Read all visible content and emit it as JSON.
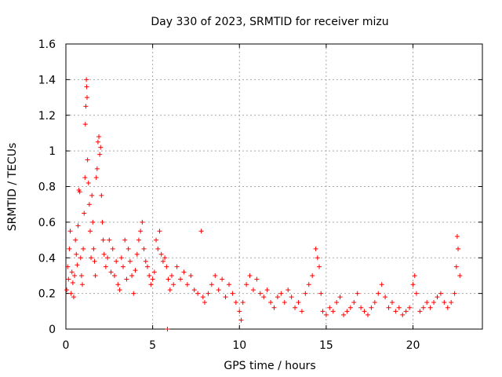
{
  "chart_data": {
    "type": "scatter",
    "title": "Day 330 of 2023, SRMTID for receiver mizu",
    "xlabel": "GPS time / hours",
    "ylabel": "SRMTID / TECUs",
    "xlim": [
      0,
      24
    ],
    "ylim": [
      0,
      1.6
    ],
    "x_ticks": [
      0,
      5,
      10,
      15,
      20
    ],
    "x_tick_labels": [
      "0",
      "5",
      "10",
      "15",
      "20"
    ],
    "y_ticks": [
      0,
      0.2,
      0.4,
      0.6,
      0.8,
      1,
      1.2,
      1.4,
      1.6
    ],
    "y_tick_labels": [
      "0",
      "0.2",
      "0.4",
      "0.6",
      "0.8",
      "1",
      "1.2",
      "1.4",
      "1.6"
    ],
    "grid": true,
    "marker": "+",
    "series": [
      {
        "name": "SRMTID",
        "color": "#ff0000",
        "points": [
          [
            0.05,
            0.22
          ],
          [
            0.1,
            0.35
          ],
          [
            0.15,
            0.28
          ],
          [
            0.2,
            0.45
          ],
          [
            0.25,
            0.55
          ],
          [
            0.3,
            0.2
          ],
          [
            0.35,
            0.32
          ],
          [
            0.4,
            0.26
          ],
          [
            0.45,
            0.18
          ],
          [
            0.5,
            0.3
          ],
          [
            0.55,
            0.5
          ],
          [
            0.6,
            0.42
          ],
          [
            0.65,
            0.36
          ],
          [
            0.7,
            0.58
          ],
          [
            0.75,
            0.78
          ],
          [
            0.8,
            0.77
          ],
          [
            0.85,
            0.4
          ],
          [
            0.9,
            0.3
          ],
          [
            0.95,
            0.25
          ],
          [
            1.0,
            0.45
          ],
          [
            1.05,
            0.65
          ],
          [
            1.1,
            0.85
          ],
          [
            1.12,
            1.15
          ],
          [
            1.15,
            1.25
          ],
          [
            1.18,
            1.4
          ],
          [
            1.2,
            1.36
          ],
          [
            1.22,
            1.3
          ],
          [
            1.25,
            0.95
          ],
          [
            1.3,
            0.82
          ],
          [
            1.35,
            0.7
          ],
          [
            1.4,
            0.55
          ],
          [
            1.45,
            0.4
          ],
          [
            1.5,
            0.75
          ],
          [
            1.55,
            0.6
          ],
          [
            1.6,
            0.45
          ],
          [
            1.65,
            0.38
          ],
          [
            1.7,
            0.3
          ],
          [
            1.75,
            0.85
          ],
          [
            1.8,
            0.9
          ],
          [
            1.85,
            1.05
          ],
          [
            1.9,
            1.08
          ],
          [
            1.95,
            0.98
          ],
          [
            2.0,
            1.02
          ],
          [
            2.05,
            0.75
          ],
          [
            2.1,
            0.6
          ],
          [
            2.15,
            0.5
          ],
          [
            2.2,
            0.42
          ],
          [
            2.3,
            0.35
          ],
          [
            2.4,
            0.4
          ],
          [
            2.5,
            0.5
          ],
          [
            2.6,
            0.32
          ],
          [
            2.7,
            0.45
          ],
          [
            2.8,
            0.3
          ],
          [
            2.9,
            0.38
          ],
          [
            3.0,
            0.25
          ],
          [
            3.1,
            0.22
          ],
          [
            3.2,
            0.4
          ],
          [
            3.3,
            0.35
          ],
          [
            3.4,
            0.5
          ],
          [
            3.5,
            0.28
          ],
          [
            3.6,
            0.45
          ],
          [
            3.7,
            0.38
          ],
          [
            3.8,
            0.3
          ],
          [
            3.9,
            0.2
          ],
          [
            4.0,
            0.33
          ],
          [
            4.1,
            0.42
          ],
          [
            4.2,
            0.5
          ],
          [
            4.3,
            0.55
          ],
          [
            4.4,
            0.6
          ],
          [
            4.5,
            0.45
          ],
          [
            4.6,
            0.38
          ],
          [
            4.7,
            0.35
          ],
          [
            4.8,
            0.3
          ],
          [
            4.9,
            0.25
          ],
          [
            5.0,
            0.28
          ],
          [
            5.1,
            0.32
          ],
          [
            5.2,
            0.5
          ],
          [
            5.3,
            0.45
          ],
          [
            5.4,
            0.55
          ],
          [
            5.5,
            0.42
          ],
          [
            5.6,
            0.38
          ],
          [
            5.7,
            0.4
          ],
          [
            5.8,
            0.35
          ],
          [
            5.85,
            0.0
          ],
          [
            5.9,
            0.28
          ],
          [
            6.0,
            0.22
          ],
          [
            6.1,
            0.3
          ],
          [
            6.2,
            0.25
          ],
          [
            6.4,
            0.35
          ],
          [
            6.6,
            0.28
          ],
          [
            6.8,
            0.32
          ],
          [
            7.0,
            0.25
          ],
          [
            7.2,
            0.3
          ],
          [
            7.4,
            0.22
          ],
          [
            7.6,
            0.2
          ],
          [
            7.8,
            0.55
          ],
          [
            7.9,
            0.18
          ],
          [
            8.0,
            0.15
          ],
          [
            8.2,
            0.2
          ],
          [
            8.4,
            0.25
          ],
          [
            8.6,
            0.3
          ],
          [
            8.8,
            0.22
          ],
          [
            9.0,
            0.28
          ],
          [
            9.2,
            0.18
          ],
          [
            9.4,
            0.25
          ],
          [
            9.6,
            0.2
          ],
          [
            9.8,
            0.15
          ],
          [
            10.0,
            0.1
          ],
          [
            10.1,
            0.05
          ],
          [
            10.2,
            0.15
          ],
          [
            10.4,
            0.25
          ],
          [
            10.6,
            0.3
          ],
          [
            10.8,
            0.22
          ],
          [
            11.0,
            0.28
          ],
          [
            11.2,
            0.2
          ],
          [
            11.4,
            0.18
          ],
          [
            11.6,
            0.22
          ],
          [
            11.8,
            0.15
          ],
          [
            12.0,
            0.12
          ],
          [
            12.2,
            0.18
          ],
          [
            12.4,
            0.2
          ],
          [
            12.6,
            0.15
          ],
          [
            12.8,
            0.22
          ],
          [
            13.0,
            0.18
          ],
          [
            13.2,
            0.12
          ],
          [
            13.4,
            0.15
          ],
          [
            13.6,
            0.1
          ],
          [
            13.8,
            0.2
          ],
          [
            14.0,
            0.25
          ],
          [
            14.2,
            0.3
          ],
          [
            14.4,
            0.45
          ],
          [
            14.5,
            0.4
          ],
          [
            14.6,
            0.35
          ],
          [
            14.7,
            0.2
          ],
          [
            14.8,
            0.1
          ],
          [
            15.0,
            0.08
          ],
          [
            15.2,
            0.12
          ],
          [
            15.4,
            0.1
          ],
          [
            15.6,
            0.15
          ],
          [
            15.8,
            0.18
          ],
          [
            16.0,
            0.08
          ],
          [
            16.2,
            0.1
          ],
          [
            16.4,
            0.12
          ],
          [
            16.6,
            0.15
          ],
          [
            16.8,
            0.2
          ],
          [
            17.0,
            0.12
          ],
          [
            17.2,
            0.1
          ],
          [
            17.4,
            0.08
          ],
          [
            17.6,
            0.12
          ],
          [
            17.8,
            0.15
          ],
          [
            18.0,
            0.2
          ],
          [
            18.2,
            0.25
          ],
          [
            18.4,
            0.18
          ],
          [
            18.6,
            0.12
          ],
          [
            18.8,
            0.15
          ],
          [
            19.0,
            0.1
          ],
          [
            19.2,
            0.12
          ],
          [
            19.4,
            0.08
          ],
          [
            19.6,
            0.1
          ],
          [
            19.8,
            0.12
          ],
          [
            20.0,
            0.25
          ],
          [
            20.1,
            0.3
          ],
          [
            20.2,
            0.2
          ],
          [
            20.4,
            0.1
          ],
          [
            20.6,
            0.12
          ],
          [
            20.8,
            0.15
          ],
          [
            21.0,
            0.12
          ],
          [
            21.2,
            0.15
          ],
          [
            21.4,
            0.18
          ],
          [
            21.6,
            0.2
          ],
          [
            21.8,
            0.15
          ],
          [
            22.0,
            0.12
          ],
          [
            22.2,
            0.15
          ],
          [
            22.4,
            0.2
          ],
          [
            22.5,
            0.35
          ],
          [
            22.55,
            0.52
          ],
          [
            22.6,
            0.45
          ],
          [
            22.7,
            0.3
          ]
        ]
      }
    ]
  }
}
